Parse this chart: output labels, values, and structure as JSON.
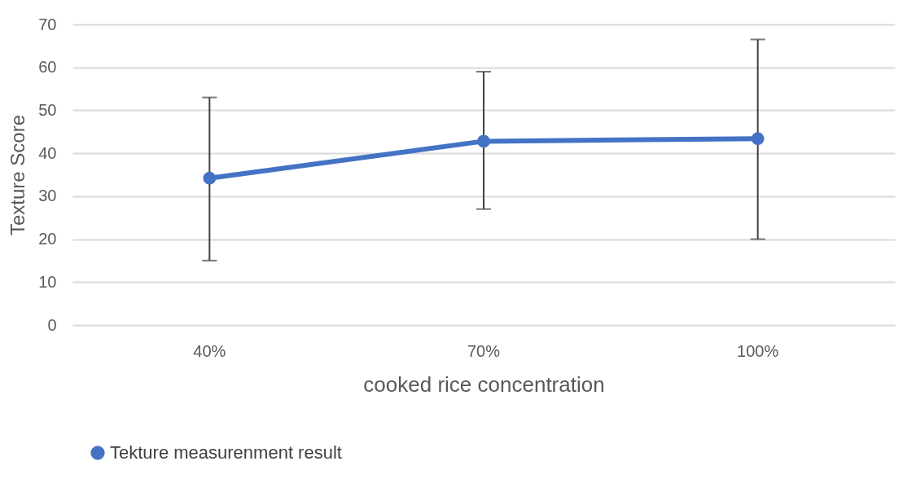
{
  "chart_data": {
    "type": "line",
    "xlabel": "cooked rice concentration",
    "ylabel": "Texture Score",
    "categories": [
      "40%",
      "70%",
      "100%"
    ],
    "series": [
      {
        "name": "Tekture measurenment result",
        "color": "#4472c4",
        "values": [
          34.2,
          42.8,
          43.4
        ],
        "errors": [
          [
            15,
            53
          ],
          [
            27,
            59
          ],
          [
            20,
            66.5
          ]
        ]
      }
    ],
    "ylim": [
      0,
      70
    ],
    "yticks": [
      0,
      10,
      20,
      30,
      40,
      50,
      60,
      70
    ],
    "grid": "y",
    "legend": "bottom",
    "marker": "circle",
    "line_style": "solid"
  }
}
